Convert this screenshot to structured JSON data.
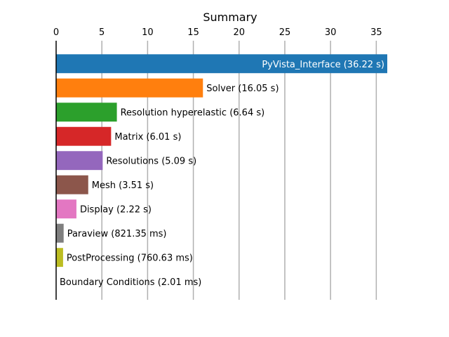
{
  "chart_data": {
    "type": "bar",
    "orientation": "horizontal",
    "title": "Summary",
    "xlabel": "",
    "ylabel": "",
    "xlim": [
      0,
      36.2
    ],
    "xticks": [
      0,
      5,
      10,
      15,
      20,
      25,
      30,
      35
    ],
    "grid": "vertical",
    "x_axis_position": "top",
    "bars": [
      {
        "category": "PyVista_Interface",
        "value": 36.22,
        "label": "PyVista_Interface (36.22 s)",
        "color": "#1f77b4",
        "label_inside": true
      },
      {
        "category": "Solver",
        "value": 16.05,
        "label": "Solver (16.05 s)",
        "color": "#ff7f0e",
        "label_inside": false
      },
      {
        "category": "Resolution hyperelastic",
        "value": 6.64,
        "label": "Resolution hyperelastic (6.64 s)",
        "color": "#2ca02c",
        "label_inside": false
      },
      {
        "category": "Matrix",
        "value": 6.01,
        "label": "Matrix (6.01 s)",
        "color": "#d62728",
        "label_inside": false
      },
      {
        "category": "Resolutions",
        "value": 5.09,
        "label": "Resolutions (5.09 s)",
        "color": "#9467bd",
        "label_inside": false
      },
      {
        "category": "Mesh",
        "value": 3.51,
        "label": "Mesh (3.51 s)",
        "color": "#8c564b",
        "label_inside": false
      },
      {
        "category": "Display",
        "value": 2.22,
        "label": "Display (2.22 s)",
        "color": "#e377c2",
        "label_inside": false
      },
      {
        "category": "Paraview",
        "value": 0.82135,
        "label": "Paraview (821.35 ms)",
        "color": "#7f7f7f",
        "label_inside": false
      },
      {
        "category": "PostProcessing",
        "value": 0.76063,
        "label": "PostProcessing (760.63 ms)",
        "color": "#bcbd22",
        "label_inside": false
      },
      {
        "category": "Boundary Conditions",
        "value": 0.00201,
        "label": "Boundary Conditions (2.01 ms)",
        "color": "#17becf",
        "label_inside": false
      }
    ]
  }
}
